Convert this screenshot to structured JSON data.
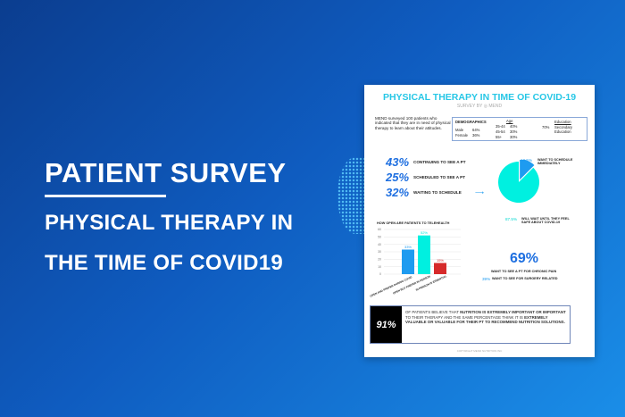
{
  "hero": {
    "line1": "PATIENT SURVEY",
    "line2": "PHYSICAL THERAPY IN",
    "line3": "THE TIME OF COVID19"
  },
  "infographic": {
    "title": "PHYSICAL THERAPY IN TIME OF COVID-19",
    "subtitle": "SURVEY BY ◎ MEND",
    "intro": "MEND surveyed 100 patients who indicated that they are in need of physical therapy to learn about their attitudes.",
    "demographics": {
      "label": "DEMOGRAPHICS",
      "male": "Male",
      "male_pct": "64%",
      "female": "Female",
      "female_pct": "36%",
      "age_label": "Age",
      "ages": [
        [
          "35-44",
          "40%"
        ],
        [
          "45-54",
          "30%"
        ],
        [
          "55+",
          "30%"
        ]
      ],
      "education_label": "Education",
      "education_pct": "70%",
      "education_value": "Secondary Education"
    },
    "stats": [
      {
        "pct": "43%",
        "label": "CONTINUING TO SEE A PT"
      },
      {
        "pct": "25%",
        "label": "SCHEDULED TO SEE A PT"
      },
      {
        "pct": "32%",
        "label": "WAITING TO SCHEDULE"
      }
    ],
    "pie": {
      "slices": [
        {
          "pct": "12.5%",
          "value": 12.5,
          "label": "WANT TO SCHEDULE IMMEDIATELY",
          "color": "#1e9bf0"
        },
        {
          "pct": "87.5%",
          "value": 87.5,
          "label": "WILL WAIT UNTIL THEY FEEL SAFE ABOUT COVID-19",
          "color": "#00f0e0"
        }
      ]
    },
    "chronic": {
      "pct": "69%",
      "label": "WANT TO SEE A PT FOR CHRONIC PAIN",
      "surgery_pct": "39%",
      "surgery_label": "WANT TO SEE FOR SURGERY RELATED"
    },
    "nutrition": {
      "pct": "91%",
      "text_parts": [
        "OF PATIENTS BELIEVE THAT ",
        "NUTRITION IS EXTREMELY IMPORTANT OR IMPORTANT",
        " TO THEIR THERAPY AND THE SAME PERCENTAGE THINK IT IS ",
        "EXTREMELY VALUABLE OR VALUABLE FOR THEIR PT TO RECOMMEND NUTRITION SOLUTIONS."
      ]
    },
    "copyright": "COPYRIGHT MEND NUTRITION INC"
  },
  "chart_data": {
    "type": "bar",
    "title": "HOW OPEN ARE PATIENTS TO TELEHEALTH",
    "categories": [
      "OPEN AND PREFER DURING COVID",
      "OPEN BUT PREFER IN PERSON",
      "IN PERSON IS ESSENTIAL"
    ],
    "values": [
      33,
      52,
      15
    ],
    "data_labels": [
      "33%",
      "52%",
      "15%"
    ],
    "colors": [
      "#1e9bf0",
      "#00f0e0",
      "#d62a2a"
    ],
    "yticks": [
      0,
      10,
      20,
      30,
      40,
      50,
      60
    ],
    "ylim": [
      0,
      60
    ],
    "grid": true
  }
}
